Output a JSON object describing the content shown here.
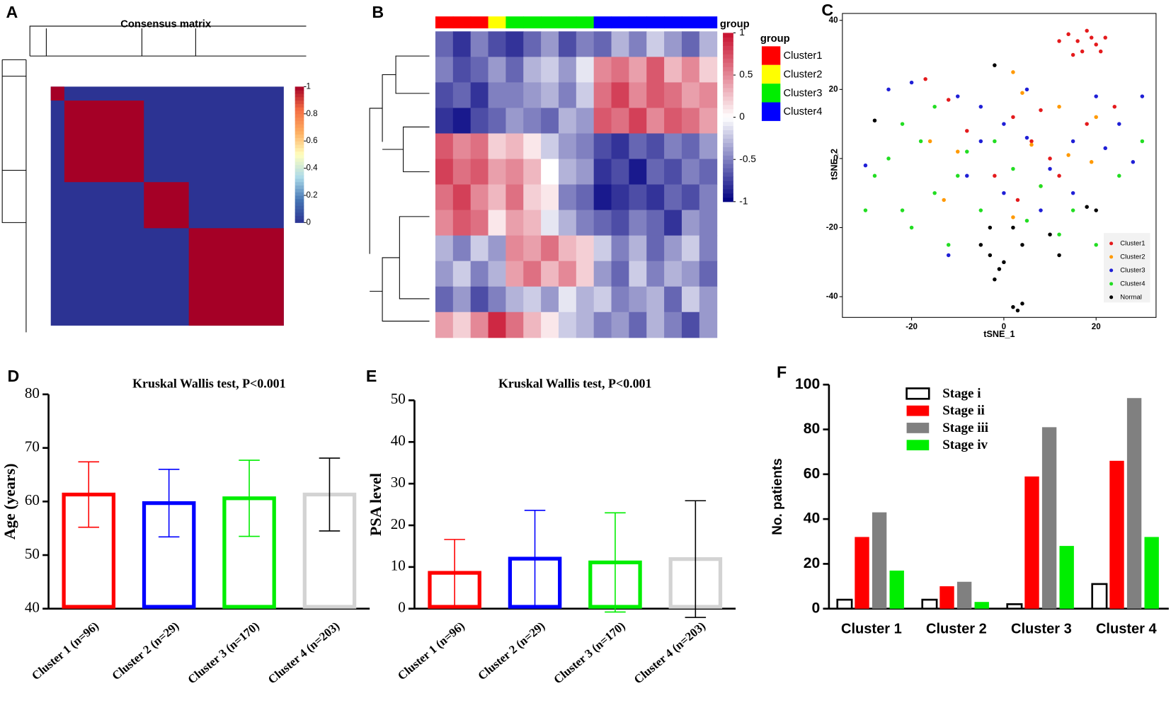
{
  "chart_data": [
    {
      "type": "consensus",
      "label": "A",
      "title": "Consensus matrix",
      "block_sizes": [
        29,
        170,
        96,
        203
      ],
      "block_value": 1,
      "off_value": 0,
      "colors": [
        "#2c3393",
        "#4575b4",
        "#abd9e9",
        "#ffffbf",
        "#fdae61",
        "#f46d43",
        "#a50026"
      ],
      "clim": [
        0,
        1
      ],
      "cticks": [
        0,
        0.2,
        0.4,
        0.6,
        0.8,
        1
      ]
    },
    {
      "type": "heatmap",
      "label": "B",
      "group_label": "group",
      "groups": [
        {
          "name": "Cluster1",
          "color": "#ff0000"
        },
        {
          "name": "Cluster2",
          "color": "#ffff00"
        },
        {
          "name": "Cluster3",
          "color": "#00ee00"
        },
        {
          "name": "Cluster4",
          "color": "#0000ff"
        }
      ],
      "column_groups": [
        0,
        0,
        0,
        1,
        2,
        2,
        2,
        2,
        2,
        3,
        3,
        3,
        3,
        3,
        3,
        3
      ],
      "matrix": [
        [
          -0.6,
          -0.8,
          -0.5,
          -0.7,
          -0.8,
          -0.6,
          -0.4,
          -0.7,
          -0.5,
          -0.6,
          -0.3,
          -0.5,
          -0.2,
          -0.4,
          -0.6,
          -0.3
        ],
        [
          -0.5,
          -0.7,
          -0.6,
          -0.4,
          -0.6,
          -0.3,
          -0.2,
          -0.4,
          -0.1,
          0.5,
          0.6,
          0.4,
          0.7,
          0.3,
          0.5,
          0.2
        ],
        [
          -0.7,
          -0.6,
          -0.8,
          -0.5,
          -0.5,
          -0.4,
          -0.3,
          -0.5,
          -0.2,
          0.6,
          0.8,
          0.5,
          0.7,
          0.6,
          0.4,
          0.5
        ],
        [
          -0.8,
          -0.9,
          -0.7,
          -0.6,
          -0.4,
          -0.5,
          -0.6,
          -0.3,
          -0.4,
          0.7,
          0.6,
          0.8,
          0.5,
          0.7,
          0.6,
          0.4
        ],
        [
          0.7,
          0.5,
          0.6,
          0.2,
          0.3,
          0.1,
          -0.2,
          -0.4,
          -0.5,
          -0.7,
          -0.8,
          -0.6,
          -0.7,
          -0.5,
          -0.6,
          -0.4
        ],
        [
          0.8,
          0.6,
          0.7,
          0.4,
          0.5,
          0.3,
          0.0,
          -0.3,
          -0.4,
          -0.8,
          -0.7,
          -0.9,
          -0.6,
          -0.7,
          -0.5,
          -0.6
        ],
        [
          0.6,
          0.8,
          0.5,
          0.3,
          0.6,
          0.2,
          0.1,
          -0.5,
          -0.6,
          -0.9,
          -0.8,
          -0.7,
          -0.8,
          -0.6,
          -0.7,
          -0.5
        ],
        [
          0.5,
          0.7,
          0.6,
          0.1,
          0.4,
          0.3,
          -0.1,
          -0.3,
          -0.5,
          -0.6,
          -0.7,
          -0.5,
          -0.6,
          -0.8,
          -0.4,
          -0.5
        ],
        [
          -0.3,
          -0.5,
          -0.2,
          -0.4,
          0.5,
          0.4,
          0.6,
          0.3,
          0.2,
          -0.2,
          -0.5,
          -0.3,
          -0.6,
          -0.4,
          -0.2,
          -0.5
        ],
        [
          -0.4,
          -0.2,
          -0.5,
          -0.3,
          0.4,
          0.6,
          0.3,
          0.5,
          0.2,
          -0.4,
          -0.6,
          -0.2,
          -0.5,
          -0.3,
          -0.4,
          -0.6
        ],
        [
          -0.6,
          -0.4,
          -0.7,
          -0.5,
          -0.3,
          -0.2,
          -0.4,
          -0.1,
          -0.3,
          -0.2,
          -0.5,
          -0.4,
          -0.3,
          -0.6,
          -0.2,
          -0.4
        ],
        [
          0.4,
          0.2,
          0.5,
          0.9,
          0.6,
          0.3,
          0.1,
          -0.2,
          -0.3,
          -0.5,
          -0.4,
          -0.6,
          -0.3,
          -0.5,
          -0.7,
          -0.4
        ]
      ],
      "colors": [
        "#000080",
        "#ffffff",
        "#c8102e"
      ],
      "clim": [
        -1,
        1
      ],
      "cticks": [
        -1,
        -0.5,
        0,
        0.5,
        1
      ]
    },
    {
      "type": "scatter",
      "label": "C",
      "xlabel": "tSNE_1",
      "ylabel": "tSNE_2",
      "xlim": [
        -35,
        33
      ],
      "ylim": [
        -46,
        42
      ],
      "xticks": [
        -20,
        0,
        20
      ],
      "yticks": [
        -40,
        -20,
        0,
        20,
        40
      ],
      "legend": "lower right",
      "series": [
        {
          "name": "Cluster1",
          "color": "#e41a1c",
          "x": [
            14,
            16,
            18,
            20,
            22,
            17,
            15,
            19,
            21,
            12,
            -17,
            -12,
            -8,
            2,
            8,
            10,
            12,
            6,
            -2,
            18,
            24,
            3
          ],
          "y": [
            36,
            34,
            37,
            33,
            35,
            31,
            30,
            35,
            31,
            34,
            23,
            17,
            8,
            12,
            14,
            0,
            -5,
            5,
            -5,
            10,
            15,
            -12
          ]
        },
        {
          "name": "Cluster2",
          "color": "#ff9900",
          "x": [
            2,
            4,
            -10,
            6,
            14,
            19,
            12,
            20,
            -16,
            -13,
            8,
            2
          ],
          "y": [
            25,
            19,
            2,
            4,
            1,
            -1,
            15,
            12,
            5,
            -12,
            -8,
            -17
          ]
        },
        {
          "name": "Cluster3",
          "color": "#1f1fd6",
          "x": [
            -30,
            -25,
            -20,
            -10,
            -5,
            0,
            5,
            10,
            15,
            20,
            25,
            28,
            -5,
            0,
            8,
            -12,
            15,
            22,
            -8,
            5,
            30
          ],
          "y": [
            -2,
            20,
            22,
            18,
            15,
            10,
            6,
            -3,
            5,
            18,
            10,
            -1,
            5,
            -10,
            -15,
            -28,
            -10,
            3,
            -5,
            20,
            18
          ]
        },
        {
          "name": "Cluster4",
          "color": "#22dd22",
          "x": [
            -30,
            -28,
            -25,
            -22,
            -20,
            -18,
            -15,
            -12,
            -10,
            -8,
            -5,
            -2,
            2,
            5,
            8,
            12,
            15,
            -22,
            -15,
            20,
            30,
            25
          ],
          "y": [
            -15,
            -5,
            0,
            -15,
            -20,
            5,
            -10,
            -25,
            -5,
            2,
            -15,
            5,
            -3,
            -18,
            -8,
            -22,
            -15,
            10,
            15,
            -25,
            5,
            -5
          ]
        },
        {
          "name": "Normal",
          "color": "#000000",
          "x": [
            -28,
            -2,
            -3,
            -5,
            -3,
            -1,
            0,
            2,
            4,
            -2,
            2,
            3,
            4,
            10,
            12,
            18,
            20
          ],
          "y": [
            11,
            27,
            -20,
            -25,
            -28,
            -32,
            -30,
            -20,
            -25,
            -35,
            -43,
            -44,
            -42,
            -22,
            -28,
            -14,
            -15
          ]
        }
      ]
    },
    {
      "type": "bar",
      "label": "D",
      "title": "Kruskal Wallis test, P<0.001",
      "ylabel": "Age (years)",
      "categories": [
        "Cluster 1 (n=96)",
        "Cluster 2 (n=29)",
        "Cluster 3 (n=170)",
        "Cluster 4 (n=203)"
      ],
      "values": [
        61.3,
        59.7,
        60.6,
        61.3
      ],
      "errors": [
        6.1,
        6.3,
        7.1,
        6.8
      ],
      "colors": [
        "#ff0000",
        "#0000ff",
        "#00ee00",
        "#d3d3d3"
      ],
      "ylim": [
        40,
        80
      ],
      "yticks": [
        40,
        50,
        60,
        70,
        80
      ]
    },
    {
      "type": "bar",
      "label": "E",
      "title": "Kruskal Wallis test, P<0.001",
      "ylabel": "PSA level",
      "categories": [
        "Cluster 1 (n=96)",
        "Cluster 2 (n=29)",
        "Cluster 3 (n=170)",
        "Cluster 4 (n=203)"
      ],
      "values": [
        8.6,
        12,
        11.1,
        11.9
      ],
      "errors": [
        8,
        11.6,
        11.9,
        14
      ],
      "colors": [
        "#ff0000",
        "#0000ff",
        "#00ee00",
        "#d3d3d3"
      ],
      "ylim": [
        0,
        50
      ],
      "yticks": [
        0,
        10,
        20,
        30,
        40,
        50
      ]
    },
    {
      "type": "grouped_bar",
      "label": "F",
      "ylabel": "No. patients",
      "categories": [
        "Cluster 1",
        "Cluster 2",
        "Cluster 3",
        "Cluster 4"
      ],
      "series": [
        {
          "name": "Stage i",
          "color": "#ffffff",
          "edgecolor": "#000000",
          "values": [
            4,
            4,
            2,
            11
          ]
        },
        {
          "name": "Stage ii",
          "color": "#ff0000",
          "values": [
            32,
            10,
            59,
            66
          ]
        },
        {
          "name": "Stage iii",
          "color": "#808080",
          "values": [
            43,
            12,
            81,
            94
          ]
        },
        {
          "name": "Stage iv",
          "color": "#00ee00",
          "values": [
            17,
            3,
            28,
            32
          ]
        }
      ],
      "ylim": [
        0,
        100
      ],
      "yticks": [
        0,
        20,
        40,
        60,
        80,
        100
      ],
      "legend": "upper left"
    }
  ]
}
